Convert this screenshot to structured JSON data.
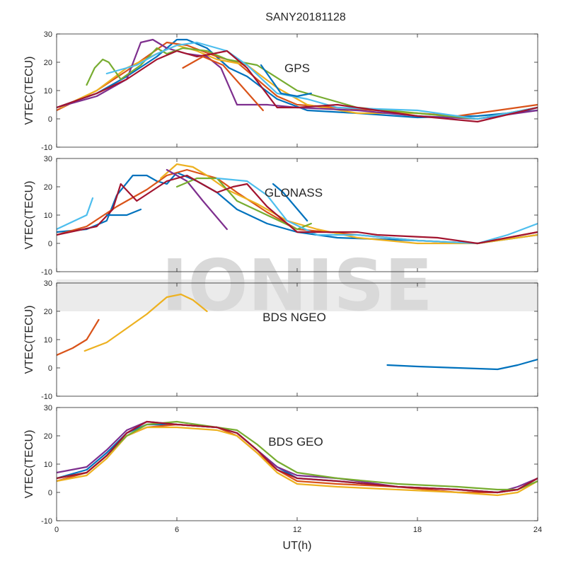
{
  "figure": {
    "title": "SANY20181128",
    "xlabel": "UT(h)",
    "watermark": "IONISE",
    "colors": {
      "axis": "#262626",
      "watermark_band": "#ebebeb"
    }
  },
  "chart_data": [
    {
      "type": "line",
      "label": "GPS",
      "ylabel": "VTEC(TECU)",
      "xlim": [
        0,
        24
      ],
      "ylim": [
        -10,
        30
      ],
      "xticks": [
        0,
        6,
        12,
        18,
        24
      ],
      "yticks": [
        -10,
        0,
        10,
        20,
        30
      ],
      "grid": false,
      "series": [
        {
          "color": "#0072BD",
          "x": [
            0,
            2,
            3.5,
            5,
            6,
            6.5,
            7.5,
            8.6,
            9.5,
            11,
            12.5,
            15,
            18,
            21,
            24
          ],
          "y": [
            4,
            9,
            15,
            22,
            28,
            28,
            25,
            18,
            15,
            7,
            3,
            2,
            0.5,
            1,
            3
          ]
        },
        {
          "color": "#D95319",
          "x": [
            0,
            2,
            3.5,
            4.5,
            5.5,
            6.5,
            8,
            9,
            10,
            11,
            12,
            14,
            16,
            20,
            24
          ],
          "y": [
            3,
            10,
            17,
            22,
            27,
            26,
            22,
            20,
            14,
            8,
            5,
            4,
            3,
            1,
            5
          ]
        },
        {
          "color": "#EDB120",
          "x": [
            0.2,
            2,
            3.5,
            5,
            6,
            7,
            8,
            9.5,
            11,
            12.5,
            15,
            18,
            21,
            24
          ],
          "y": [
            4,
            10,
            18,
            23,
            26,
            24,
            21,
            19,
            11,
            5,
            2,
            2,
            0,
            4
          ]
        },
        {
          "color": "#7E2F8E",
          "x": [
            0,
            2,
            3.5,
            4.2,
            4.8,
            5.5,
            6.5,
            7.5,
            8.2,
            9,
            10.5,
            12,
            15,
            18,
            21,
            24
          ],
          "y": [
            4,
            8,
            14,
            27,
            28,
            25,
            23,
            22,
            18,
            5,
            5,
            4,
            3,
            1,
            0,
            3
          ]
        },
        {
          "color": "#77AC30",
          "x": [
            1.5,
            1.9,
            2.3,
            2.6,
            3.2,
            4.2,
            5,
            5.5,
            6.3,
            7.5,
            8.5,
            10,
            12,
            15,
            18,
            21,
            24
          ],
          "y": [
            12,
            18,
            21,
            20,
            14,
            19,
            25,
            23,
            25,
            24,
            21,
            19,
            10,
            4,
            2,
            0,
            4
          ]
        },
        {
          "color": "#4DBEEE",
          "x": [
            2.5,
            4,
            5,
            6,
            7,
            7.5,
            8.5,
            9.5,
            11,
            12.5,
            14,
            18,
            21,
            24
          ],
          "y": [
            16,
            19,
            23,
            26,
            27,
            26,
            24,
            19,
            9,
            7,
            4,
            3,
            0,
            4
          ]
        },
        {
          "color": "#A2142F",
          "x": [
            0,
            2,
            3.5,
            5,
            6,
            7,
            7.8,
            8.5,
            9.5,
            11,
            12,
            14,
            18,
            21,
            24
          ],
          "y": [
            4,
            9,
            14,
            21,
            24,
            22,
            23,
            24,
            18,
            4,
            4,
            5,
            1,
            -1,
            4
          ]
        },
        {
          "color": "#0072BD",
          "x": [
            10.2,
            11.2,
            12,
            12.7
          ],
          "y": [
            19,
            9,
            8,
            9
          ]
        },
        {
          "color": "#D95319",
          "x": [
            6.3,
            7.3,
            8.3,
            9.3,
            10.3
          ],
          "y": [
            18,
            22,
            19,
            11,
            3
          ]
        }
      ]
    },
    {
      "type": "line",
      "label": "GLONASS",
      "ylabel": "VTEC(TECU)",
      "xlim": [
        0,
        24
      ],
      "ylim": [
        -10,
        30
      ],
      "xticks": [
        0,
        6,
        12,
        18,
        24
      ],
      "yticks": [
        -10,
        0,
        10,
        20,
        30
      ],
      "grid": false,
      "series": [
        {
          "color": "#0072BD",
          "x": [
            0,
            1.5,
            2.5,
            3,
            3.8,
            4.5,
            5,
            5.5,
            6,
            7,
            8,
            9,
            10.5,
            12,
            14,
            18,
            21,
            24
          ],
          "y": [
            4,
            5,
            8,
            17,
            24,
            24,
            22,
            21,
            25,
            22,
            18,
            12,
            7,
            4,
            2,
            1,
            0,
            3
          ]
        },
        {
          "color": "#D95319",
          "x": [
            0,
            1.5,
            3,
            4.5,
            5.5,
            6.5,
            8,
            9,
            10.5,
            12,
            15,
            18,
            21,
            24
          ],
          "y": [
            3,
            6,
            13,
            19,
            24,
            26,
            23,
            18,
            11,
            5,
            3,
            1,
            0,
            4
          ]
        },
        {
          "color": "#EDB120",
          "x": [
            5.2,
            6,
            6.8,
            7.5,
            8.5,
            10,
            11.5,
            13,
            15,
            18,
            21,
            24
          ],
          "y": [
            23,
            28,
            27,
            24,
            19,
            14,
            8,
            5,
            2,
            0,
            0,
            3
          ]
        },
        {
          "color": "#7E2F8E",
          "x": [
            5.5,
            6.5,
            7.3,
            8.5
          ],
          "y": [
            26,
            22,
            15,
            5
          ]
        },
        {
          "color": "#77AC30",
          "x": [
            6,
            7,
            8,
            9,
            10.5,
            12,
            12.7
          ],
          "y": [
            20,
            23,
            23,
            15,
            10,
            5,
            7
          ]
        },
        {
          "color": "#4DBEEE",
          "x": [
            0,
            1.5,
            1.8
          ],
          "y": [
            5,
            10,
            16
          ]
        },
        {
          "color": "#4DBEEE",
          "x": [
            8,
            9.5,
            10.5,
            11.5,
            13,
            15,
            18,
            21,
            22.5,
            24
          ],
          "y": [
            23,
            22,
            17,
            8,
            3,
            3,
            1,
            0,
            3,
            7
          ]
        },
        {
          "color": "#A2142F",
          "x": [
            0,
            2,
            2.8,
            3.2,
            4,
            5.5,
            6.5,
            7.5,
            8,
            8.8,
            9.5,
            10.5,
            12,
            15,
            16,
            19,
            21,
            24
          ],
          "y": [
            3,
            6,
            12,
            21,
            15,
            22,
            24,
            20,
            18,
            20,
            21,
            13,
            4,
            4,
            3,
            2,
            0,
            4
          ]
        },
        {
          "color": "#0072BD",
          "x": [
            2.5,
            3.5,
            4.2
          ],
          "y": [
            10,
            10,
            12
          ]
        },
        {
          "color": "#0072BD",
          "x": [
            10.8,
            11.3,
            12.5
          ],
          "y": [
            21,
            18,
            8
          ]
        }
      ]
    },
    {
      "type": "line",
      "label": "BDS NGEO",
      "ylabel": "VTEC(TECU)",
      "xlim": [
        0,
        24
      ],
      "ylim": [
        -10,
        30
      ],
      "xticks": [
        0,
        6,
        12,
        18,
        24
      ],
      "yticks": [
        -10,
        0,
        10,
        20,
        30
      ],
      "grid": false,
      "series": [
        {
          "color": "#D95319",
          "x": [
            0,
            0.8,
            1.5,
            2.1
          ],
          "y": [
            4.5,
            7,
            10,
            17
          ]
        },
        {
          "color": "#EDB120",
          "x": [
            1.4,
            2.5,
            3.5,
            4.5,
            5.5,
            6.2,
            6.8,
            7.5
          ],
          "y": [
            6,
            9,
            14,
            19,
            25,
            26,
            24,
            20
          ]
        },
        {
          "color": "#0072BD",
          "x": [
            16.5,
            18,
            20,
            22,
            23,
            24
          ],
          "y": [
            1,
            0.5,
            0,
            -0.5,
            1,
            3
          ]
        }
      ]
    },
    {
      "type": "line",
      "label": "BDS GEO",
      "ylabel": "VTEC(TECU)",
      "xlim": [
        0,
        24
      ],
      "ylim": [
        -10,
        30
      ],
      "xticks": [
        0,
        6,
        12,
        18,
        24
      ],
      "yticks": [
        -10,
        0,
        10,
        20,
        30
      ],
      "grid": false,
      "series": [
        {
          "color": "#0072BD",
          "x": [
            0,
            1.5,
            2.5,
            3.5,
            4.5,
            6,
            8,
            9,
            10,
            11,
            12,
            14,
            17,
            20,
            22,
            23,
            24
          ],
          "y": [
            5,
            8,
            14,
            21,
            24,
            24,
            23,
            21,
            15,
            9,
            5,
            4,
            2,
            1,
            0,
            1,
            5
          ]
        },
        {
          "color": "#D95319",
          "x": [
            0,
            1.5,
            2.5,
            3.5,
            4.5,
            6,
            8,
            9,
            10,
            11,
            12,
            14,
            17,
            20,
            22,
            23,
            24
          ],
          "y": [
            4,
            7,
            13,
            20,
            23,
            24,
            23,
            20,
            14,
            8,
            4,
            3,
            2,
            0,
            0,
            1,
            5
          ]
        },
        {
          "color": "#EDB120",
          "x": [
            0,
            1.5,
            2.5,
            3.5,
            4.5,
            6,
            8,
            9,
            10,
            11,
            12,
            14,
            17,
            20,
            22,
            23,
            24
          ],
          "y": [
            4,
            6,
            12,
            20,
            23,
            23,
            22,
            20,
            14,
            7,
            3,
            2,
            1,
            0,
            -1,
            0,
            4
          ]
        },
        {
          "color": "#7E2F8E",
          "x": [
            0,
            1.5,
            2.5,
            3.5,
            4.5,
            6,
            8,
            9,
            10,
            11,
            12,
            14,
            17,
            20,
            22,
            23,
            24
          ],
          "y": [
            7,
            9,
            15,
            22,
            25,
            24,
            23,
            21,
            15,
            9,
            6,
            5,
            2,
            1,
            0,
            2,
            5
          ]
        },
        {
          "color": "#77AC30",
          "x": [
            0,
            1.5,
            2.5,
            3.5,
            4.5,
            6,
            8,
            9,
            10,
            11,
            12,
            14,
            17,
            20,
            22,
            23,
            24
          ],
          "y": [
            5,
            7,
            13,
            20,
            24,
            25,
            23,
            22,
            17,
            11,
            7,
            5,
            3,
            2,
            1,
            1,
            4
          ]
        },
        {
          "color": "#A2142F",
          "x": [
            0,
            1.5,
            2.5,
            3.5,
            4.5,
            6,
            8,
            9,
            10,
            11,
            12,
            14,
            17,
            20,
            22,
            23,
            24
          ],
          "y": [
            5,
            7,
            13,
            21,
            25,
            24,
            23,
            21,
            15,
            8,
            5,
            4,
            2,
            1,
            0,
            1,
            5
          ]
        }
      ]
    }
  ]
}
